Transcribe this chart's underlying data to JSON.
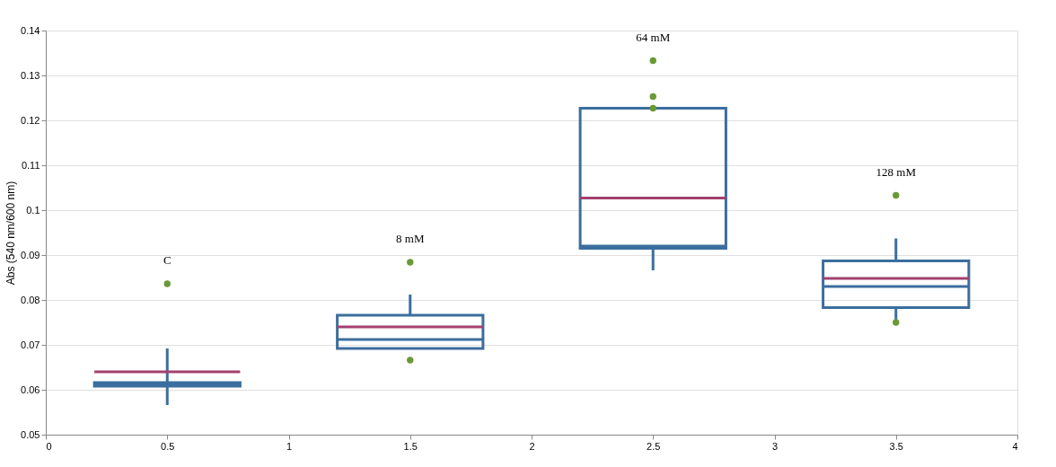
{
  "chart_data": {
    "type": "box",
    "ylabel": "Abs (540 nm/600 nm)",
    "x": [
      0.5,
      1.5,
      2.5,
      3.5
    ],
    "xlim": [
      0,
      4
    ],
    "xticks": [
      0,
      0.5,
      1,
      1.5,
      2,
      2.5,
      3,
      3.5,
      4
    ],
    "ylim": [
      0.05,
      0.14
    ],
    "yticks": [
      0.05,
      0.06,
      0.07,
      0.08,
      0.09,
      0.1,
      0.11,
      0.12,
      0.13,
      0.14
    ],
    "grid": "y",
    "series": [
      {
        "color": "#3b6e9e",
        "boxes": [
          {
            "low": 0.0566,
            "q1": 0.0608,
            "median": 0.0612,
            "q3": 0.0616,
            "high": 0.0692,
            "mean": 0.064,
            "outliers": [
              0.0836
            ]
          },
          {
            "low": 0.0692,
            "q1": 0.0692,
            "median": 0.0712,
            "q3": 0.0766,
            "high": 0.0812,
            "mean": 0.074,
            "outliers": [
              0.0884,
              0.0666
            ]
          },
          {
            "low": 0.0866,
            "q1": 0.0915,
            "median": 0.092,
            "q3": 0.1227,
            "high": 0.1227,
            "mean": 0.1027,
            "outliers": [
              0.1333,
              0.1253,
              0.1227
            ]
          },
          {
            "low": 0.0752,
            "q1": 0.0783,
            "median": 0.083,
            "q3": 0.0887,
            "high": 0.0937,
            "mean": 0.0848,
            "outliers": [
              0.1033,
              0.075
            ]
          }
        ]
      }
    ],
    "annotations": [
      "C",
      "8 mM",
      "64 mM",
      "128 mM"
    ]
  }
}
